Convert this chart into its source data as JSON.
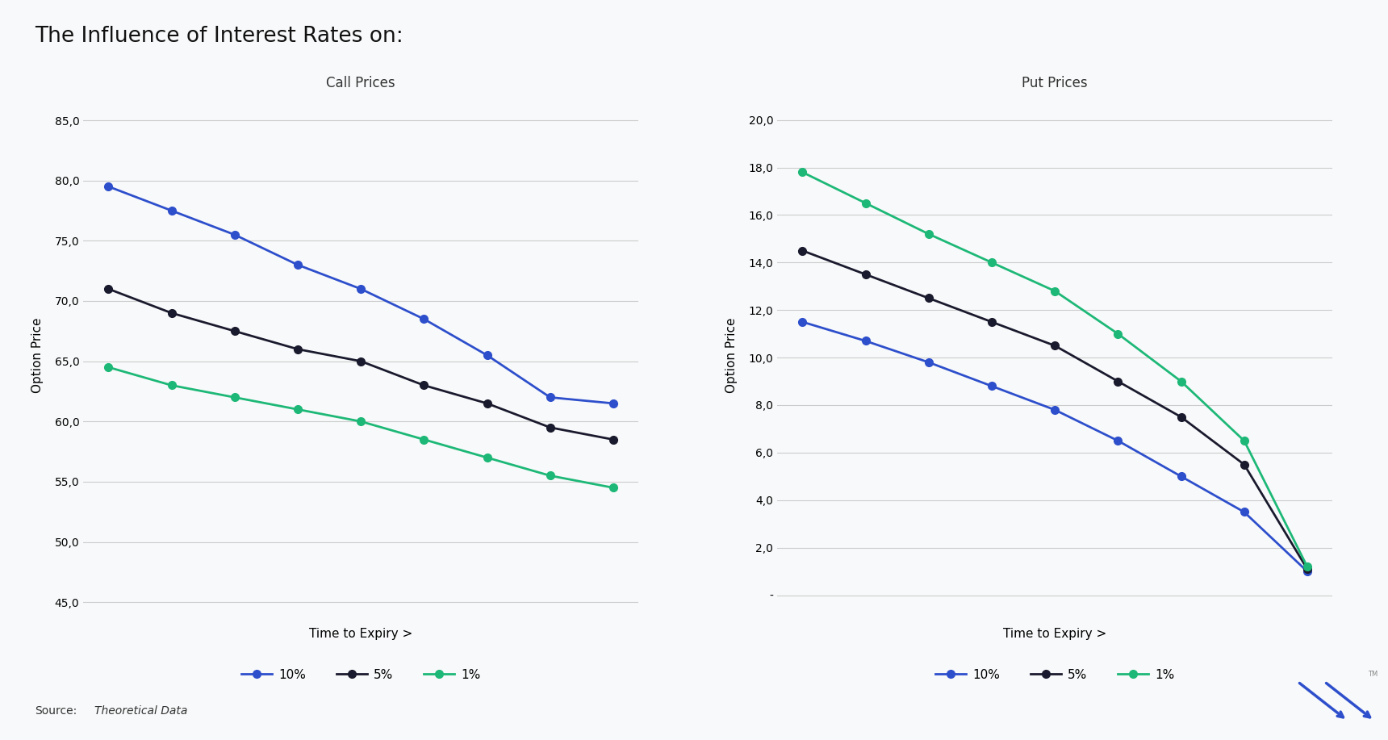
{
  "title": "The Influence of Interest Rates on:",
  "call_title": "Call Prices",
  "put_title": "Put Prices",
  "xlabel": "Time to Expiry >",
  "ylabel": "Option Price",
  "source_label": "Source:",
  "source_italic": "Theoretical Data",
  "call_10pct": [
    79.5,
    77.5,
    75.5,
    73.0,
    71.0,
    68.5,
    65.5,
    62.0,
    61.5
  ],
  "call_5pct": [
    71.0,
    69.0,
    67.5,
    66.0,
    65.0,
    63.0,
    61.5,
    59.5,
    58.5
  ],
  "call_1pct": [
    64.5,
    63.0,
    62.0,
    61.0,
    60.0,
    58.5,
    57.0,
    55.5,
    54.5
  ],
  "put_10pct": [
    11.5,
    10.7,
    9.8,
    8.8,
    7.8,
    6.5,
    5.0,
    3.5,
    1.0
  ],
  "put_5pct": [
    14.5,
    13.5,
    12.5,
    11.5,
    10.5,
    9.0,
    7.5,
    5.5,
    1.1
  ],
  "put_1pct": [
    17.8,
    16.5,
    15.2,
    14.0,
    12.8,
    11.0,
    9.0,
    6.5,
    1.2
  ],
  "call_ylim": [
    44,
    87
  ],
  "call_yticks": [
    45.0,
    50.0,
    55.0,
    60.0,
    65.0,
    70.0,
    75.0,
    80.0,
    85.0
  ],
  "put_ylim": [
    -0.8,
    21
  ],
  "put_yticks": [
    0.0,
    2.0,
    4.0,
    6.0,
    8.0,
    10.0,
    12.0,
    14.0,
    16.0,
    18.0,
    20.0
  ],
  "color_10pct": "#2E4FCC",
  "color_5pct": "#1a1a2e",
  "color_1pct": "#1db877",
  "background": "#f8f9fa",
  "plot_bg": "#f8f9fa",
  "grid_color": "#cccccc",
  "legend_labels": [
    "10%",
    "5%",
    "1%"
  ],
  "logo_color": "#2E4FCC"
}
